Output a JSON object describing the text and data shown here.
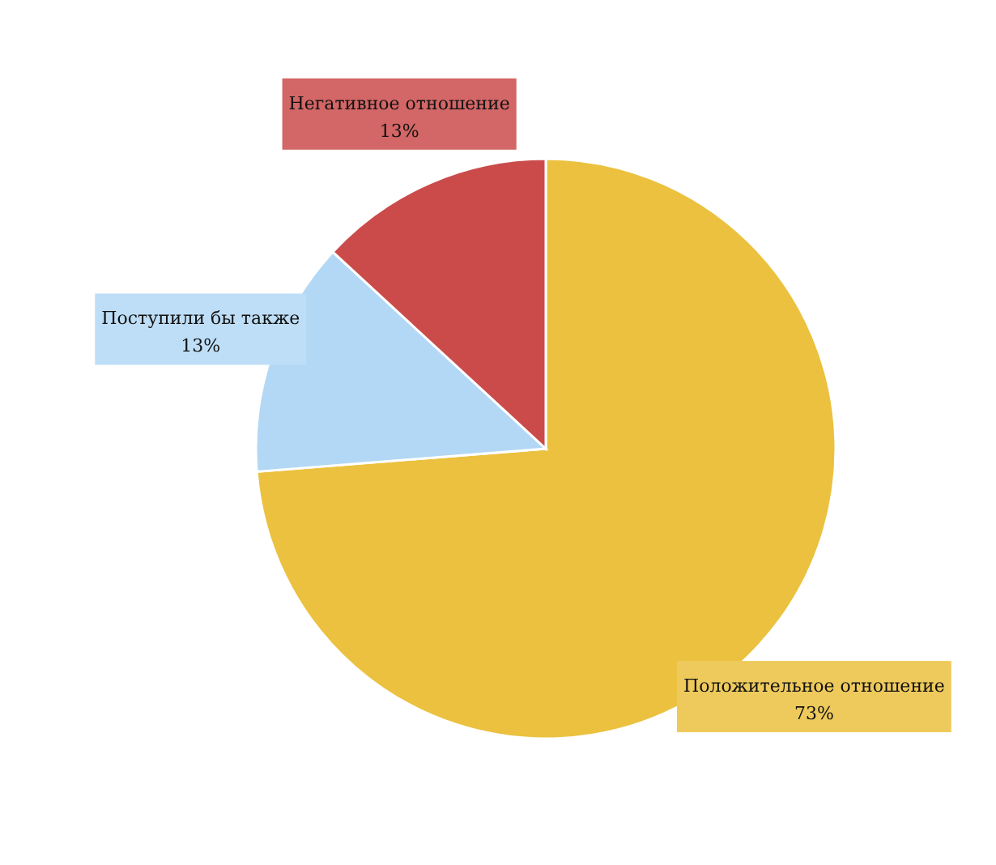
{
  "chart_data": {
    "type": "pie",
    "categories": [
      "Положительное отношение",
      "Поступили бы также",
      "Негативное отношение"
    ],
    "values": [
      73,
      13,
      13
    ],
    "colors": [
      "#ebc13f",
      "#b3d8f5",
      "#cb4b4b"
    ],
    "value_labels": [
      "73%",
      "13%",
      "13%"
    ]
  }
}
